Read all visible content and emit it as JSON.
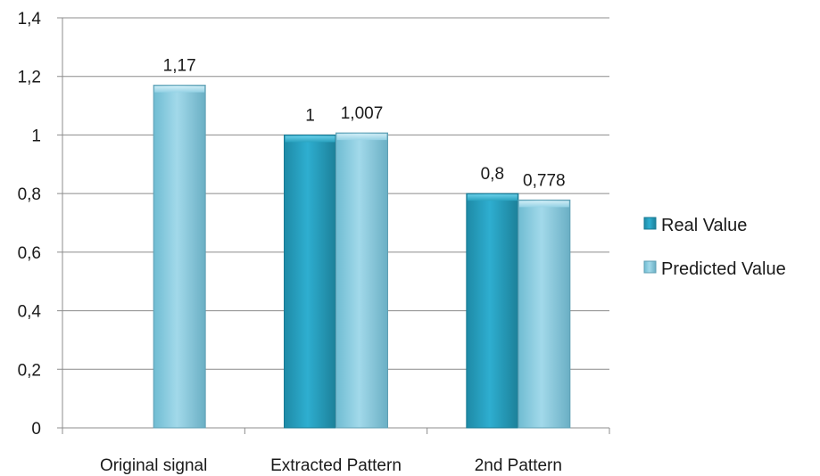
{
  "chart_data": {
    "type": "bar",
    "categories": [
      "Original signal",
      "Extracted Pattern",
      "2nd Pattern"
    ],
    "series": [
      {
        "name": "Real Value",
        "color": "#2aa3c0",
        "values": [
          null,
          1,
          0.8
        ],
        "labels": [
          "",
          "1",
          "0,8"
        ]
      },
      {
        "name": "Predicted Value",
        "color": "#8fcfe2",
        "values": [
          1.17,
          1.007,
          0.778
        ],
        "labels": [
          "1,17",
          "1,007",
          "0,778"
        ]
      }
    ],
    "ylim": [
      0,
      1.4
    ],
    "yticks": [
      0,
      0.2,
      0.4,
      0.6,
      0.8,
      1,
      1.2,
      1.4
    ],
    "ytick_labels": [
      "0",
      "0,2",
      "0,4",
      "0,6",
      "0,8",
      "1",
      "1,2",
      "1,4"
    ],
    "grid": true,
    "legend_position": "right",
    "title": "",
    "xlabel": "",
    "ylabel": ""
  }
}
